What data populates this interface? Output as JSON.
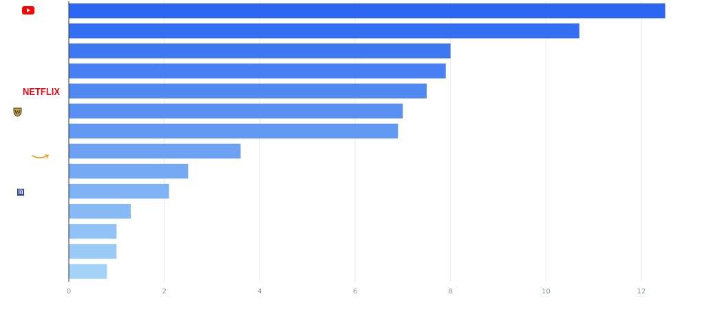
{
  "chart_data": {
    "type": "bar",
    "orientation": "horizontal",
    "values": [
      12.5,
      10.7,
      8.0,
      7.9,
      7.5,
      7.0,
      6.9,
      3.6,
      2.5,
      2.1,
      1.3,
      1.0,
      1.0,
      0.8
    ],
    "row_icons": [
      "youtube-logo",
      "",
      "",
      "",
      "netflix-logo",
      "warner-bros-logo",
      "",
      "amazon-logo",
      "",
      "bank-logo",
      "",
      "",
      "",
      ""
    ],
    "xlim": [
      0,
      12.5
    ],
    "xticks": [
      0,
      2,
      4,
      6,
      8,
      10,
      12
    ],
    "grid": true,
    "colors": {
      "bar_start": "#2b67f0",
      "bar_end": "#a3d3f7",
      "grid": "#e6e8ee",
      "axis": "#333333",
      "tick_text": "#8a8fa8"
    },
    "logos": {
      "youtube_color": "#ff0000",
      "netflix_text": "NETFLIX",
      "netflix_color": "#e50914",
      "warner_color": "#caa23b",
      "amazon_color": "#f39c12",
      "bank_color": "#1f3f9a"
    }
  }
}
